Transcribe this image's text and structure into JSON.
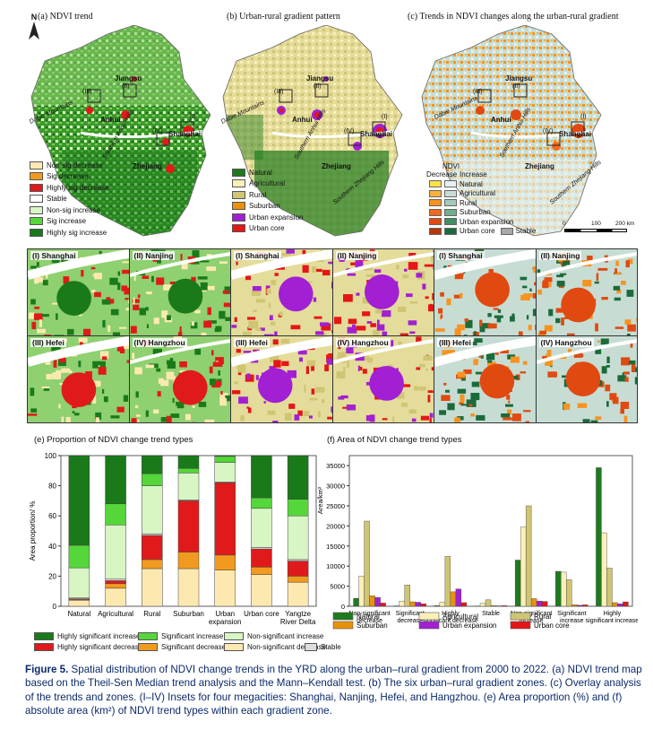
{
  "maps": {
    "a_title": "(a) NDVI trend",
    "b_title": "(b) Urban-rural gradient pattern",
    "c_title": "(c) Trends in NDVI changes along the urban-rural gradient",
    "north": "N",
    "place_labels": [
      "Jiangsu",
      "Anhui",
      "Shanghai",
      "Zhejiang"
    ],
    "mountain_labels": [
      "Dabie Mountains",
      "Southern Anhui Hills",
      "Southern Zhejiang Hills"
    ],
    "inset_markers": [
      "(I)",
      "(II)",
      "(III)",
      "(IV)"
    ],
    "scale": [
      "0",
      "100",
      "200 km"
    ]
  },
  "legend_a": [
    {
      "label": "Non-sig decrease",
      "color": "#fde9b0"
    },
    {
      "label": "Sig decrease",
      "color": "#f29a1f"
    },
    {
      "label": "Highly sig decrease",
      "color": "#e01a1a"
    },
    {
      "label": "Stable",
      "color": "#ffffff"
    },
    {
      "label": "Non-sig increase",
      "color": "#d8f5c4"
    },
    {
      "label": "Sig increase",
      "color": "#55d63a"
    },
    {
      "label": "Highly sig increase",
      "color": "#1a7a1a"
    }
  ],
  "legend_b": [
    {
      "label": "Natural",
      "color": "#1f7a1f"
    },
    {
      "label": "Agricultural",
      "color": "#fcefb8"
    },
    {
      "label": "Rural",
      "color": "#cfc573"
    },
    {
      "label": "Suburban",
      "color": "#e8920c"
    },
    {
      "label": "Urban expansion",
      "color": "#a21fd3"
    },
    {
      "label": "Urban core",
      "color": "#e51616"
    }
  ],
  "legend_c": {
    "title": "NDVI",
    "col_decrease": "Decrease",
    "col_increase": "Increase",
    "rows": [
      {
        "label": "Natural",
        "dec": "#ffe14a",
        "inc": "#e7f1ef"
      },
      {
        "label": "Agricultural",
        "dec": "#fbb03b",
        "inc": "#c7ddd4"
      },
      {
        "label": "Rural",
        "dec": "#f7931e",
        "inc": "#a3c9b8"
      },
      {
        "label": "Suburban",
        "dec": "#f26b1d",
        "inc": "#6fb08f"
      },
      {
        "label": "Urban expansion",
        "dec": "#e04a10",
        "inc": "#3d8f5f"
      },
      {
        "label": "Urban core",
        "dec": "#b83508",
        "inc": "#1b6b3a"
      }
    ],
    "stable_label": "Stable",
    "stable_color": "#a8a8a8"
  },
  "insets": [
    {
      "label": "(I) Shanghai"
    },
    {
      "label": "(II) Nanjing"
    },
    {
      "label": "(I) Shanghai"
    },
    {
      "label": "(II) Nanjing"
    },
    {
      "label": "(I) Shanghai"
    },
    {
      "label": "(II) Nanjing"
    },
    {
      "label": "(III) Hefei"
    },
    {
      "label": "(IV) Hangzhou"
    },
    {
      "label": "(III) Hefei"
    },
    {
      "label": "(IV) Hangzhou"
    },
    {
      "label": "(III) Hefei"
    },
    {
      "label": "(IV) Hangzhou"
    }
  ],
  "chart_data": [
    {
      "type": "bar",
      "stacked": true,
      "title": "(e) Proportion of NDVI change trend types",
      "ylabel": "Area proportion/ %",
      "ylim": [
        0,
        100
      ],
      "yticks": [
        0,
        20,
        40,
        60,
        80,
        100
      ],
      "categories": [
        "Natural",
        "Agricultural",
        "Rural",
        "Suburban",
        "Urban expansion",
        "Urban core",
        "Yangtze River Delta"
      ],
      "category_labels": [
        [
          "Natural"
        ],
        [
          "Agricultural"
        ],
        [
          "Rural"
        ],
        [
          "Suburban"
        ],
        [
          "Urban",
          "expansion"
        ],
        [
          "Urban core"
        ],
        [
          "Yangtze",
          "River Delta"
        ]
      ],
      "series": [
        {
          "name": "Non-significant decrease",
          "color": "#fde9b0",
          "values": [
            4,
            12,
            25,
            25,
            24,
            21,
            16
          ]
        },
        {
          "name": "Significant decrease",
          "color": "#f29a1f",
          "values": [
            0.5,
            3,
            6,
            11,
            10,
            5,
            4
          ]
        },
        {
          "name": "Highly significant decrease",
          "color": "#e01a1a",
          "values": [
            0.5,
            2,
            16,
            34,
            48,
            12,
            10
          ]
        },
        {
          "name": "Stable",
          "color": "#dcdcdc",
          "values": [
            0.5,
            1,
            1,
            0.5,
            0.5,
            1,
            1
          ]
        },
        {
          "name": "Non-significant increase",
          "color": "#d8f5c4",
          "values": [
            20,
            36,
            32,
            18,
            13,
            26,
            29
          ]
        },
        {
          "name": "Significant increase",
          "color": "#55d63a",
          "values": [
            15,
            14,
            8,
            3,
            4,
            7,
            11
          ]
        },
        {
          "name": "Highly significant increase",
          "color": "#1a7a1a",
          "values": [
            59.5,
            32,
            12,
            8.5,
            0.5,
            28,
            29
          ]
        }
      ]
    },
    {
      "type": "bar",
      "title": "(f) Area of NDVI change trend types",
      "ylabel": "Area/km²",
      "ylim": [
        0,
        37500
      ],
      "yticks": [
        0,
        5000,
        10000,
        15000,
        20000,
        25000,
        30000,
        35000
      ],
      "categories": [
        "Non-significant decrease",
        "Significant decrease",
        "Highly significant decrease",
        "Stable",
        "Non-significant increase",
        "Significant increase",
        "Highly significant increase"
      ],
      "category_labels": [
        [
          "Non-significant",
          "decrease"
        ],
        [
          "Significant",
          "decrease"
        ],
        [
          "Highly",
          "significant decrease"
        ],
        [
          "Stable"
        ],
        [
          "Non-significant",
          "increase"
        ],
        [
          "Significant",
          "increase"
        ],
        [
          "Highly",
          "significant increase"
        ]
      ],
      "series": [
        {
          "name": "Natural",
          "color": "#1f7a1f",
          "values": [
            2000,
            100,
            150,
            50,
            11500,
            8700,
            34500
          ]
        },
        {
          "name": "Agricultural",
          "color": "#fcefb8",
          "values": [
            7500,
            1300,
            1000,
            700,
            19700,
            8500,
            18300
          ]
        },
        {
          "name": "Rural",
          "color": "#cfc573",
          "values": [
            21200,
            5300,
            12400,
            1600,
            25000,
            6600,
            9500
          ]
        },
        {
          "name": "Suburban",
          "color": "#e8920c",
          "values": [
            2600,
            1100,
            3600,
            200,
            1900,
            400,
            900
          ]
        },
        {
          "name": "Urban expansion",
          "color": "#a21fd3",
          "values": [
            2200,
            1000,
            4300,
            100,
            1300,
            250,
            600
          ]
        },
        {
          "name": "Urban core",
          "color": "#e51616",
          "values": [
            800,
            600,
            900,
            150,
            1200,
            350,
            1100
          ]
        }
      ]
    }
  ],
  "caption": {
    "label": "Figure 5.",
    "text": " Spatial distribution of NDVI change trends in the YRD along the urban–rural gradient from 2000 to 2022. (a) NDVI trend map based on the Theil-Sen Median trend analysis and the Mann–Kendall test. (b) The six urban–rural gradient zones. (c) Overlay analysis of the trends and zones. (I–IV) Insets for four megacities: Shanghai, Nanjing, Hefei, and Hangzhou. (e) Area proportion (%) and (f) absolute area (km²) of NDVI trend types within each gradient zone."
  }
}
